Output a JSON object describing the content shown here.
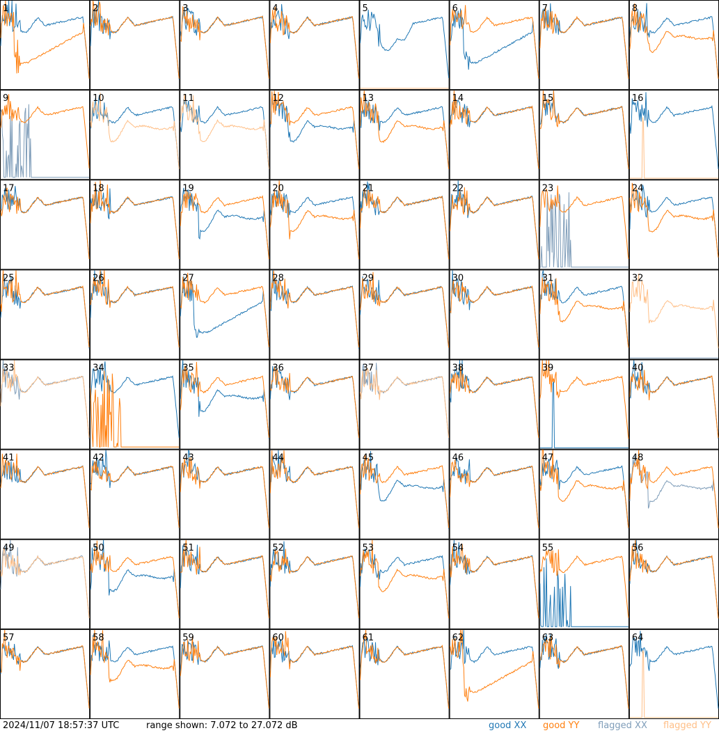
{
  "footer": {
    "timestamp": "2024/11/07 18:57:37 UTC",
    "range_text": "range shown: 7.072 to 27.072 dB"
  },
  "legend": [
    {
      "key": "goodXX",
      "label": "good XX",
      "color": "#1f77b4"
    },
    {
      "key": "goodYY",
      "label": "good YY",
      "color": "#ff7f0e"
    },
    {
      "key": "flagXX",
      "label": "flagged XX",
      "color": "#7f9db9"
    },
    {
      "key": "flagYY",
      "label": "flagged YY",
      "color": "#ffbf87"
    }
  ],
  "chart_data": {
    "type": "line",
    "layout": "small-multiples 8x8",
    "ylim": [
      7.072,
      27.072
    ],
    "yunit": "dB",
    "panels": [
      {
        "id": "1",
        "xx": "good",
        "yy": "good",
        "xxShape": "A",
        "yyShape": "drop"
      },
      {
        "id": "2",
        "xx": "good",
        "yy": "good",
        "xxShape": "A",
        "yyShape": "A"
      },
      {
        "id": "3",
        "xx": "good",
        "yy": "good",
        "xxShape": "A",
        "yyShape": "A"
      },
      {
        "id": "4",
        "xx": "good",
        "yy": "good",
        "xxShape": "A",
        "yyShape": "A"
      },
      {
        "id": "5",
        "xx": "good",
        "yy": "flagged",
        "xxShape": "dip",
        "yyShape": "flat"
      },
      {
        "id": "6",
        "xx": "good",
        "yy": "good",
        "xxShape": "drop",
        "yyShape": "A"
      },
      {
        "id": "7",
        "xx": "good",
        "yy": "good",
        "xxShape": "A",
        "yyShape": "A"
      },
      {
        "id": "8",
        "xx": "good",
        "yy": "good",
        "xxShape": "A",
        "yyShape": "low"
      },
      {
        "id": "9",
        "xx": "flagged",
        "yy": "good",
        "xxShape": "spikes",
        "yyShape": "A"
      },
      {
        "id": "10",
        "xx": "good",
        "yy": "flagged",
        "xxShape": "A",
        "yyShape": "low"
      },
      {
        "id": "11",
        "xx": "good",
        "yy": "flagged",
        "xxShape": "A",
        "yyShape": "low"
      },
      {
        "id": "12",
        "xx": "good",
        "yy": "good",
        "xxShape": "low",
        "yyShape": "A"
      },
      {
        "id": "13",
        "xx": "good",
        "yy": "good",
        "xxShape": "A",
        "yyShape": "low"
      },
      {
        "id": "14",
        "xx": "good",
        "yy": "good",
        "xxShape": "A",
        "yyShape": "A"
      },
      {
        "id": "15",
        "xx": "good",
        "yy": "good",
        "xxShape": "A",
        "yyShape": "A"
      },
      {
        "id": "16",
        "xx": "good",
        "yy": "flagged",
        "xxShape": "A",
        "yyShape": "spike"
      },
      {
        "id": "17",
        "xx": "good",
        "yy": "good",
        "xxShape": "A",
        "yyShape": "A"
      },
      {
        "id": "18",
        "xx": "good",
        "yy": "good",
        "xxShape": "A",
        "yyShape": "A"
      },
      {
        "id": "19",
        "xx": "good",
        "yy": "good",
        "xxShape": "low",
        "yyShape": "A"
      },
      {
        "id": "20",
        "xx": "good",
        "yy": "good",
        "xxShape": "A",
        "yyShape": "low"
      },
      {
        "id": "21",
        "xx": "good",
        "yy": "good",
        "xxShape": "A",
        "yyShape": "A"
      },
      {
        "id": "22",
        "xx": "good",
        "yy": "good",
        "xxShape": "A",
        "yyShape": "A"
      },
      {
        "id": "23",
        "xx": "flagged",
        "yy": "good",
        "xxShape": "spikes",
        "yyShape": "A"
      },
      {
        "id": "24",
        "xx": "good",
        "yy": "good",
        "xxShape": "A",
        "yyShape": "low"
      },
      {
        "id": "25",
        "xx": "good",
        "yy": "good",
        "xxShape": "A",
        "yyShape": "A"
      },
      {
        "id": "26",
        "xx": "good",
        "yy": "good",
        "xxShape": "A",
        "yyShape": "A"
      },
      {
        "id": "27",
        "xx": "good",
        "yy": "good",
        "xxShape": "drop",
        "yyShape": "A"
      },
      {
        "id": "28",
        "xx": "good",
        "yy": "good",
        "xxShape": "A",
        "yyShape": "A"
      },
      {
        "id": "29",
        "xx": "good",
        "yy": "good",
        "xxShape": "A",
        "yyShape": "A"
      },
      {
        "id": "30",
        "xx": "good",
        "yy": "good",
        "xxShape": "A",
        "yyShape": "A"
      },
      {
        "id": "31",
        "xx": "good",
        "yy": "good",
        "xxShape": "A",
        "yyShape": "low"
      },
      {
        "id": "32",
        "xx": "flagged",
        "yy": "flagged",
        "xxShape": "flat",
        "yyShape": "low"
      },
      {
        "id": "33",
        "xx": "flagged",
        "yy": "flagged",
        "xxShape": "A",
        "yyShape": "A"
      },
      {
        "id": "34",
        "xx": "good",
        "yy": "good",
        "xxShape": "A",
        "yyShape": "spikes"
      },
      {
        "id": "35",
        "xx": "good",
        "yy": "good",
        "xxShape": "low",
        "yyShape": "A"
      },
      {
        "id": "36",
        "xx": "good",
        "yy": "good",
        "xxShape": "A",
        "yyShape": "A"
      },
      {
        "id": "37",
        "xx": "flagged",
        "yy": "flagged",
        "xxShape": "A",
        "yyShape": "A"
      },
      {
        "id": "38",
        "xx": "good",
        "yy": "good",
        "xxShape": "A",
        "yyShape": "A"
      },
      {
        "id": "39",
        "xx": "good",
        "yy": "good",
        "xxShape": "spike",
        "yyShape": "A"
      },
      {
        "id": "40",
        "xx": "good",
        "yy": "good",
        "xxShape": "A",
        "yyShape": "A"
      },
      {
        "id": "41",
        "xx": "good",
        "yy": "good",
        "xxShape": "A",
        "yyShape": "A"
      },
      {
        "id": "42",
        "xx": "good",
        "yy": "good",
        "xxShape": "A",
        "yyShape": "A"
      },
      {
        "id": "43",
        "xx": "good",
        "yy": "good",
        "xxShape": "A",
        "yyShape": "A"
      },
      {
        "id": "44",
        "xx": "good",
        "yy": "good",
        "xxShape": "A",
        "yyShape": "A"
      },
      {
        "id": "45",
        "xx": "good",
        "yy": "good",
        "xxShape": "low",
        "yyShape": "A"
      },
      {
        "id": "46",
        "xx": "good",
        "yy": "good",
        "xxShape": "A",
        "yyShape": "A"
      },
      {
        "id": "47",
        "xx": "good",
        "yy": "good",
        "xxShape": "A",
        "yyShape": "low"
      },
      {
        "id": "48",
        "xx": "flagged",
        "yy": "good",
        "xxShape": "low",
        "yyShape": "A"
      },
      {
        "id": "49",
        "xx": "flagged",
        "yy": "flagged",
        "xxShape": "A",
        "yyShape": "A"
      },
      {
        "id": "50",
        "xx": "good",
        "yy": "good",
        "xxShape": "low",
        "yyShape": "A"
      },
      {
        "id": "51",
        "xx": "good",
        "yy": "good",
        "xxShape": "A",
        "yyShape": "A"
      },
      {
        "id": "52",
        "xx": "good",
        "yy": "good",
        "xxShape": "A",
        "yyShape": "A"
      },
      {
        "id": "53",
        "xx": "good",
        "yy": "good",
        "xxShape": "A",
        "yyShape": "low"
      },
      {
        "id": "54",
        "xx": "good",
        "yy": "good",
        "xxShape": "A",
        "yyShape": "A"
      },
      {
        "id": "55",
        "xx": "good",
        "yy": "good",
        "xxShape": "spikes",
        "yyShape": "A"
      },
      {
        "id": "56",
        "xx": "good",
        "yy": "good",
        "xxShape": "A",
        "yyShape": "A"
      },
      {
        "id": "57",
        "xx": "good",
        "yy": "good",
        "xxShape": "A",
        "yyShape": "A"
      },
      {
        "id": "58",
        "xx": "good",
        "yy": "good",
        "xxShape": "A",
        "yyShape": "low"
      },
      {
        "id": "59",
        "xx": "good",
        "yy": "good",
        "xxShape": "A",
        "yyShape": "A"
      },
      {
        "id": "60",
        "xx": "good",
        "yy": "good",
        "xxShape": "A",
        "yyShape": "A"
      },
      {
        "id": "61",
        "xx": "good",
        "yy": "good",
        "xxShape": "A",
        "yyShape": "A"
      },
      {
        "id": "62",
        "xx": "good",
        "yy": "good",
        "xxShape": "A",
        "yyShape": "drop"
      },
      {
        "id": "63",
        "xx": "good",
        "yy": "good",
        "xxShape": "A",
        "yyShape": "A"
      },
      {
        "id": "64",
        "xx": "good",
        "yy": "flagged",
        "xxShape": "A",
        "yyShape": "spike"
      }
    ]
  }
}
